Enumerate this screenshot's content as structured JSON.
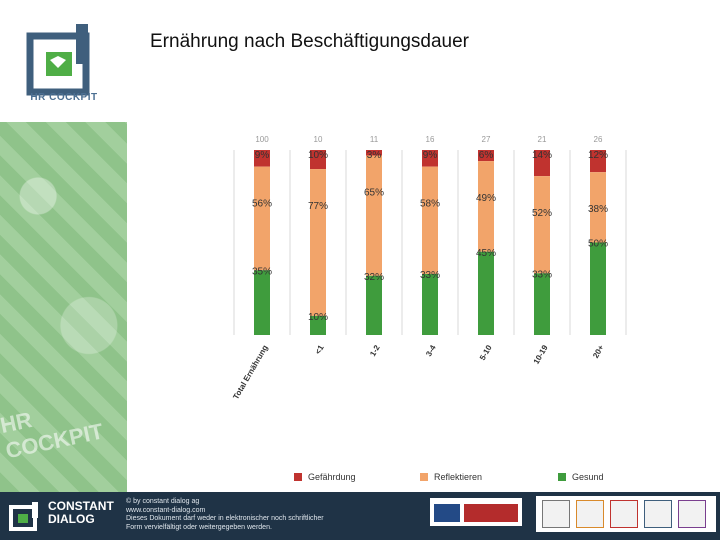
{
  "title": "Ernährung nach Beschäftigungsdauer",
  "sidebar": {
    "logo_text": "HR COCKPIT",
    "watermark": "HR COCKPIT"
  },
  "chart_data": {
    "type": "bar",
    "stacked": true,
    "categories": [
      "Total Ernährung",
      "<1",
      "1-2",
      "3-4",
      "5-10",
      "10-19",
      "20+"
    ],
    "n_labels": [
      "100",
      "10",
      "11",
      "16",
      "27",
      "21",
      "26"
    ],
    "series": [
      {
        "name": "Gefährdung",
        "color": "#c0332f",
        "values": [
          9,
          10,
          3,
          9,
          6,
          14,
          12
        ],
        "labels": [
          "9%",
          "10%",
          "3%",
          "9%",
          "6%",
          "14%",
          "12%"
        ]
      },
      {
        "name": "Reflektieren",
        "color": "#f2a46a",
        "values": [
          56,
          77,
          65,
          58,
          49,
          52,
          38
        ],
        "labels": [
          "56%",
          "77%",
          "65%",
          "58%",
          "49%",
          "52%",
          "38%"
        ]
      },
      {
        "name": "Gesund",
        "color": "#3f9c3d",
        "values": [
          35,
          10,
          32,
          33,
          45,
          33,
          50
        ],
        "labels": [
          "35%",
          "10%",
          "32%",
          "33%",
          "45%",
          "33%",
          "50%"
        ]
      }
    ],
    "ylim": [
      0,
      100
    ],
    "grid": true,
    "legend_position": "bottom"
  },
  "legend": [
    {
      "label": "Gefährdung",
      "color": "#c0332f"
    },
    {
      "label": "Reflektieren",
      "color": "#f2a46a"
    },
    {
      "label": "Gesund",
      "color": "#3f9c3d"
    }
  ],
  "footer": {
    "brand_line1": "CONSTANT",
    "brand_line2": "DIALOG",
    "copyright": "© by constant dialog ag",
    "url": "www.constant-dialog.com",
    "notice1": "Dieses Dokument darf weder in elektronischer noch schriftlicher",
    "notice2": "Form vervielfältigt oder weitergegeben werden."
  }
}
